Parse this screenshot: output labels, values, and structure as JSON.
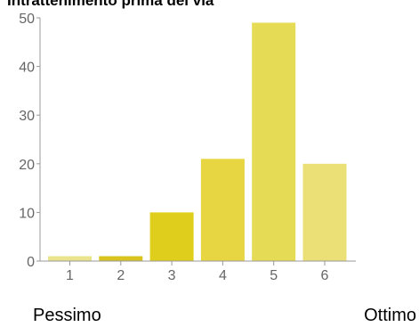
{
  "chart_data": {
    "type": "bar",
    "title": "Intrattenimento prima del via",
    "categories": [
      "1",
      "2",
      "3",
      "4",
      "5",
      "6"
    ],
    "values": [
      1,
      1,
      10,
      21,
      49,
      20
    ],
    "colors": [
      "#ebe48f",
      "#d8c41c",
      "#dfce1b",
      "#e7d642",
      "#e6db55",
      "#ebe076"
    ],
    "ylim": [
      0,
      50
    ],
    "yticks": [
      0,
      10,
      20,
      30,
      40,
      50
    ],
    "xlabel": "",
    "ylabel": "",
    "grid": false,
    "axis_color": "#999999"
  },
  "scale": {
    "min_label": "Pessimo",
    "max_label": "Ottimo"
  }
}
